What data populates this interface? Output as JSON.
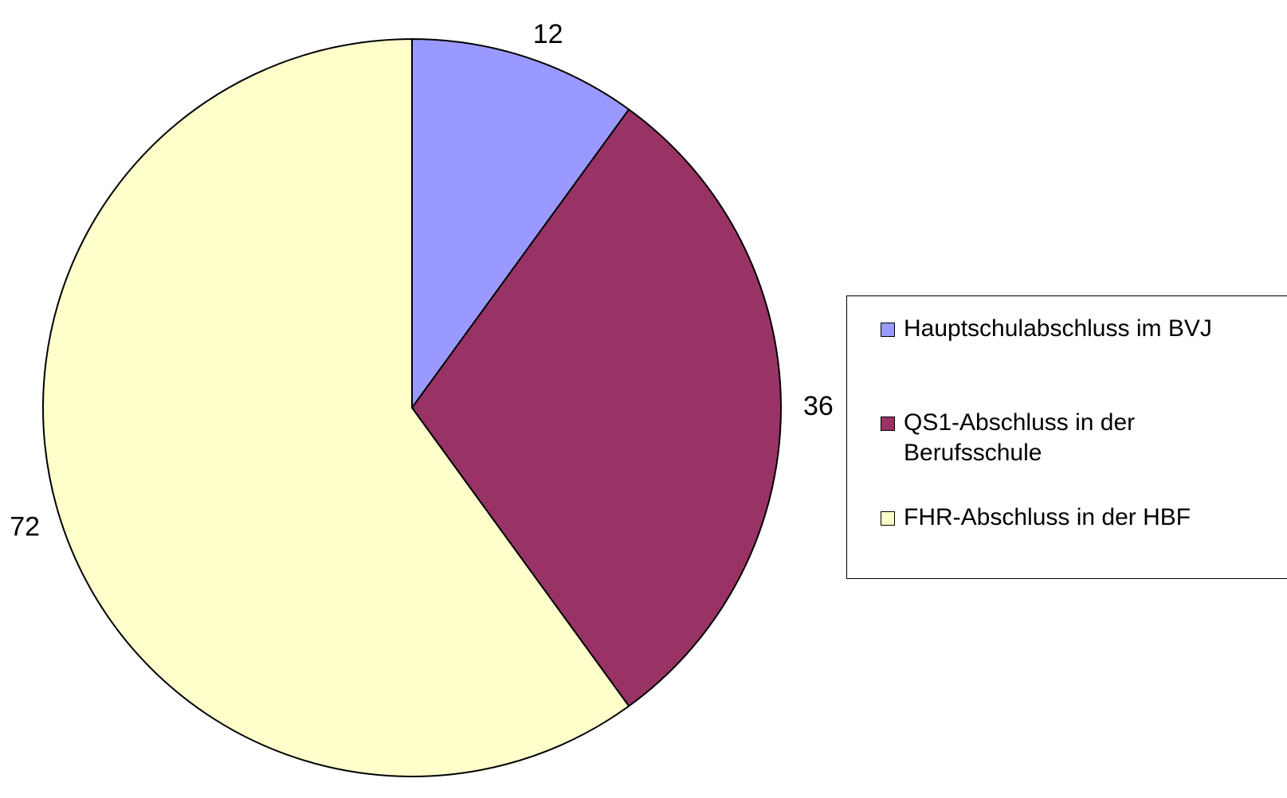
{
  "chart_data": {
    "type": "pie",
    "categories": [
      "Hauptschulabschluss im BVJ",
      "QS1-Abschluss in der Berufsschule",
      "FHR-Abschluss in der HBF"
    ],
    "values": [
      12,
      36,
      72
    ],
    "colors": [
      "#9999ff",
      "#993366",
      "#ffffcc"
    ],
    "legend": "right"
  }
}
